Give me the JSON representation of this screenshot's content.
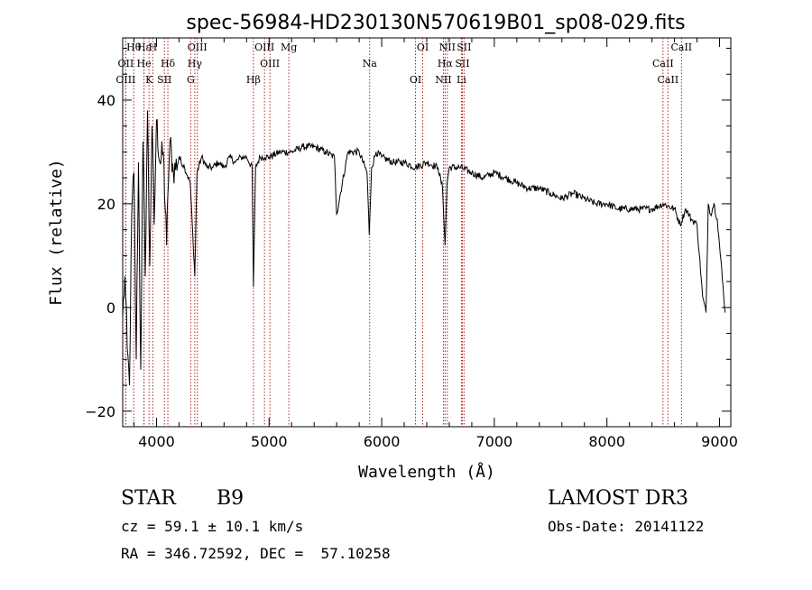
{
  "chart_data": {
    "type": "line",
    "title": "spec-56984-HD230130N570619B01_sp08-029.fits",
    "xlabel": "Wavelength (Å)",
    "ylabel": "Flux (relative)",
    "xlim": [
      3700,
      9100
    ],
    "ylim": [
      -23,
      52
    ],
    "x_ticks": [
      4000,
      5000,
      6000,
      7000,
      8000,
      9000
    ],
    "x_tick_labels": [
      "4000",
      "5000",
      "6000",
      "7000",
      "8000",
      "9000"
    ],
    "y_ticks": [
      -20,
      0,
      20,
      40
    ],
    "y_tick_labels": [
      "−20",
      "0",
      "20",
      "40"
    ],
    "grid": false,
    "series": [
      {
        "name": "flux",
        "color": "#000000",
        "x": [
          3700,
          3720,
          3740,
          3760,
          3780,
          3800,
          3820,
          3840,
          3860,
          3880,
          3900,
          3920,
          3940,
          3960,
          3980,
          4000,
          4030,
          4060,
          4090,
          4101,
          4120,
          4150,
          4200,
          4250,
          4300,
          4340,
          4360,
          4400,
          4450,
          4500,
          4550,
          4600,
          4650,
          4700,
          4750,
          4800,
          4850,
          4861,
          4880,
          4920,
          4960,
          5000,
          5100,
          5200,
          5300,
          5400,
          5500,
          5580,
          5600,
          5700,
          5800,
          5870,
          5890,
          5910,
          5950,
          6000,
          6100,
          6200,
          6300,
          6400,
          6500,
          6540,
          6563,
          6580,
          6600,
          6700,
          6800,
          6900,
          7000,
          7100,
          7200,
          7300,
          7400,
          7500,
          7600,
          7700,
          7800,
          7900,
          8000,
          8100,
          8200,
          8300,
          8400,
          8500,
          8600,
          8650,
          8700,
          8750,
          8800,
          8850,
          8880,
          8900,
          8920,
          8950,
          8980,
          9000,
          9050
        ],
        "y": [
          -2,
          6,
          -8,
          -15,
          18,
          26,
          -10,
          28,
          -12,
          32,
          6,
          38,
          8,
          35,
          16,
          36,
          28,
          30,
          12,
          22,
          32,
          26,
          29,
          27,
          24,
          6,
          26,
          29,
          27,
          27,
          28,
          27,
          29,
          28,
          29,
          29,
          27,
          4,
          27,
          29,
          29,
          29,
          30,
          30,
          31,
          31,
          30,
          29,
          18,
          30,
          30,
          26,
          14,
          27,
          30,
          29,
          28,
          28,
          27,
          28,
          27,
          23,
          12,
          24,
          27,
          27,
          26,
          25,
          26,
          25,
          24,
          23,
          23,
          22,
          21,
          22,
          21,
          20,
          20,
          19,
          19,
          19,
          19,
          20,
          19,
          16,
          19,
          17,
          16,
          2,
          -1,
          20,
          18,
          20,
          17,
          12,
          -1
        ],
        "stroke_width": 1
      }
    ],
    "spectral_lines": [
      {
        "label": "Hθ",
        "x": 3798
      },
      {
        "label": "OII",
        "x": 3727
      },
      {
        "label": "OIII",
        "x": 3727
      },
      {
        "label": "Hε",
        "x": 3889
      },
      {
        "label": "He",
        "x": 3889
      },
      {
        "label": "K",
        "x": 3934
      },
      {
        "label": "H",
        "x": 3968
      },
      {
        "label": "Hδ",
        "x": 4101
      },
      {
        "label": "SII",
        "x": 4070
      },
      {
        "label": "OIII",
        "x": 4363
      },
      {
        "label": "Hγ",
        "x": 4340
      },
      {
        "label": "G",
        "x": 4304
      },
      {
        "label": "OIII",
        "x": 4959
      },
      {
        "label": "OIII",
        "x": 5007
      },
      {
        "label": "Hβ",
        "x": 4861
      },
      {
        "label": "Mg",
        "x": 5175
      },
      {
        "label": "Na",
        "x": 5893
      },
      {
        "label": "OI",
        "x": 6300
      },
      {
        "label": "OI",
        "x": 6364
      },
      {
        "label": "Hα",
        "x": 6563
      },
      {
        "label": "NII",
        "x": 6548
      },
      {
        "label": "NII",
        "x": 6583
      },
      {
        "label": "SII",
        "x": 6716
      },
      {
        "label": "Li",
        "x": 6708
      },
      {
        "label": "SII",
        "x": 6731
      },
      {
        "label": "CaII",
        "x": 8498
      },
      {
        "label": "CaII",
        "x": 8542
      },
      {
        "label": "CaII",
        "x": 8662
      }
    ]
  },
  "info": {
    "object_class": "STAR",
    "subclass": "B9",
    "survey": "LAMOST DR3",
    "velocity": "cz = 59.1 ± 10.1 km/s",
    "obs_date": "Obs-Date: 20141122",
    "coords": "RA = 346.72592, DEC =  57.10258"
  },
  "colors": {
    "axes": "#000000",
    "line_marker": "#b22222",
    "background": "#ffffff"
  }
}
